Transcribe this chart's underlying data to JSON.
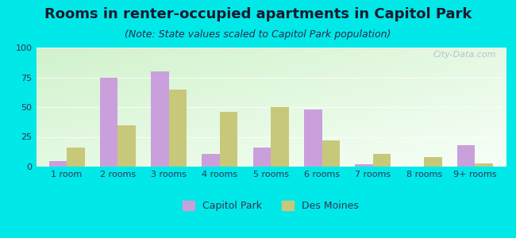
{
  "title": "Rooms in renter-occupied apartments in Capitol Park",
  "subtitle": "(Note: State values scaled to Capitol Park population)",
  "categories": [
    "1 room",
    "2 rooms",
    "3 rooms",
    "4 rooms",
    "5 rooms",
    "6 rooms",
    "7 rooms",
    "8 rooms",
    "9+ rooms"
  ],
  "capitol_park": [
    5,
    75,
    80,
    11,
    16,
    48,
    2,
    0,
    18
  ],
  "des_moines": [
    16,
    35,
    65,
    46,
    50,
    22,
    11,
    8,
    3
  ],
  "capitol_park_color": "#c9a0dc",
  "des_moines_color": "#c8c87a",
  "ylim": [
    0,
    100
  ],
  "yticks": [
    0,
    25,
    50,
    75,
    100
  ],
  "background_outer": "#00e8e8",
  "watermark": "City-Data.com",
  "bar_width": 0.35,
  "title_fontsize": 13,
  "subtitle_fontsize": 9,
  "legend_fontsize": 9,
  "tick_fontsize": 8,
  "title_color": "#1a1a2e",
  "subtitle_color": "#2a2a4a"
}
